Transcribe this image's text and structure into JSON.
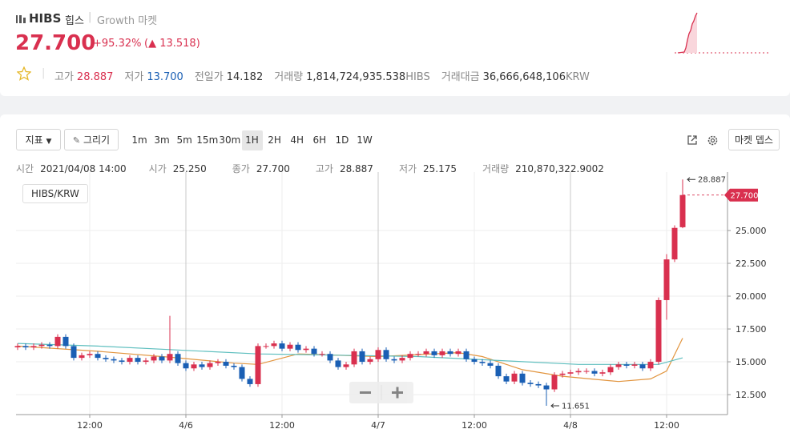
{
  "header": {
    "ticker": "HIBS",
    "name": "힙스",
    "market": "Growth 마켓",
    "price": "27.700",
    "change_rate": "+95.32%",
    "change": "(▲ 13.518)",
    "stats": [
      {
        "label": "고가",
        "value": "28.887"
      },
      {
        "label": "저가",
        "value": "13.700"
      },
      {
        "label": "전일가",
        "value": "14.182"
      },
      {
        "label": "거래량",
        "value": "1,814,724,935.538",
        "unit": "HIBS"
      },
      {
        "label": "거래대금",
        "value": "36,666,648,106",
        "unit": "KRW"
      }
    ]
  },
  "toolbar": {
    "indicator": "지표",
    "draw": "그리기",
    "intervals": [
      "1m",
      "3m",
      "5m",
      "15m",
      "30m",
      "1H",
      "2H",
      "4H",
      "6H",
      "1D",
      "1W"
    ],
    "selected_interval": "1H",
    "depth": "마켓 뎁스"
  },
  "ohlc_bar": [
    {
      "label": "시간",
      "value": "2021/04/08 14:00"
    },
    {
      "label": "시가",
      "value": "25.250"
    },
    {
      "label": "종가",
      "value": "27.700"
    },
    {
      "label": "고가",
      "value": "28.887"
    },
    {
      "label": "저가",
      "value": "25.175"
    },
    {
      "label": "거래량",
      "value": "210,870,322.9002"
    }
  ],
  "chart_data": {
    "type": "candlestick",
    "legend": "HIBS/KRW",
    "up_color": "#d9304f",
    "down_color": "#1a5fb4",
    "open": [
      16.1,
      16.2,
      16.1,
      16.2,
      16.3,
      16.2,
      16.9,
      16.2,
      15.3,
      15.5,
      15.6,
      15.3,
      15.2,
      15.1,
      15.0,
      15.3,
      15.0,
      15.1,
      15.4,
      15.1,
      15.6,
      14.9,
      14.5,
      14.8,
      14.6,
      14.9,
      15.0,
      14.7,
      14.6,
      13.7,
      13.3,
      16.2,
      16.2,
      16.4,
      16.0,
      16.3,
      15.9,
      16.0,
      15.6,
      15.6,
      15.1,
      14.6,
      14.8,
      15.8,
      15.0,
      15.2,
      15.9,
      15.2,
      15.1,
      15.3,
      15.6,
      15.6,
      15.8,
      15.5,
      15.8,
      15.6,
      15.8,
      15.2,
      15.0,
      14.9,
      14.7,
      13.9,
      13.5,
      14.1,
      13.4,
      13.3,
      13.2,
      12.9,
      14.0,
      14.1,
      14.2,
      14.3,
      14.3,
      14.1,
      14.2,
      14.6,
      14.8,
      14.7,
      14.8,
      14.5,
      15.0,
      19.7,
      22.8,
      25.25
    ],
    "high": [
      16.4,
      16.4,
      16.4,
      16.5,
      16.5,
      17.1,
      17.1,
      16.4,
      15.7,
      15.8,
      15.8,
      15.5,
      15.4,
      15.3,
      15.5,
      15.5,
      15.3,
      15.6,
      15.6,
      18.5,
      15.8,
      15.1,
      15.0,
      15.0,
      15.1,
      15.2,
      15.2,
      14.9,
      14.8,
      13.9,
      16.4,
      16.4,
      16.6,
      16.6,
      16.5,
      16.5,
      16.2,
      16.2,
      15.8,
      15.8,
      15.3,
      15.0,
      16.0,
      16.0,
      15.4,
      16.1,
      16.1,
      15.4,
      15.5,
      15.8,
      15.8,
      16.0,
      16.0,
      16.0,
      16.0,
      16.0,
      16.0,
      15.4,
      15.2,
      15.1,
      14.9,
      14.1,
      14.3,
      14.3,
      13.6,
      13.5,
      13.4,
      14.2,
      14.3,
      14.4,
      14.5,
      14.5,
      14.5,
      14.4,
      14.8,
      15.0,
      15.0,
      15.0,
      15.0,
      15.2,
      19.9,
      23.2,
      25.4,
      28.887
    ],
    "low": [
      15.9,
      15.9,
      15.9,
      16.0,
      16.0,
      16.0,
      16.0,
      15.1,
      15.1,
      15.3,
      15.1,
      15.0,
      14.9,
      14.8,
      14.8,
      14.8,
      14.8,
      14.9,
      14.9,
      14.9,
      14.7,
      14.3,
      14.3,
      14.4,
      14.4,
      14.7,
      14.5,
      14.4,
      13.5,
      13.1,
      13.1,
      16.0,
      16.0,
      15.8,
      15.8,
      15.7,
      15.7,
      15.4,
      15.4,
      14.9,
      14.4,
      14.4,
      14.6,
      14.8,
      14.8,
      15.0,
      15.0,
      14.9,
      14.9,
      15.1,
      15.4,
      15.4,
      15.3,
      15.3,
      15.4,
      15.4,
      15.0,
      14.8,
      14.7,
      14.5,
      13.7,
      13.3,
      13.3,
      13.2,
      13.1,
      13.0,
      11.651,
      12.7,
      13.8,
      13.9,
      14.0,
      14.1,
      13.9,
      13.9,
      14.0,
      14.4,
      14.5,
      14.5,
      14.3,
      14.3,
      14.8,
      18.2,
      22.6,
      25.175
    ],
    "close": [
      16.2,
      16.1,
      16.2,
      16.3,
      16.2,
      16.9,
      16.2,
      15.3,
      15.5,
      15.6,
      15.3,
      15.2,
      15.1,
      15.0,
      15.3,
      15.0,
      15.1,
      15.4,
      15.1,
      15.6,
      14.9,
      14.5,
      14.8,
      14.6,
      14.9,
      15.0,
      14.7,
      14.6,
      13.7,
      13.3,
      16.2,
      16.2,
      16.4,
      16.0,
      16.3,
      15.9,
      16.0,
      15.6,
      15.6,
      15.1,
      14.6,
      14.8,
      15.8,
      15.0,
      15.2,
      15.9,
      15.2,
      15.1,
      15.3,
      15.6,
      15.6,
      15.8,
      15.5,
      15.8,
      15.6,
      15.8,
      15.2,
      15.0,
      14.9,
      14.7,
      13.9,
      13.5,
      14.1,
      13.4,
      13.3,
      13.2,
      12.9,
      14.0,
      14.1,
      14.2,
      14.3,
      14.3,
      14.1,
      14.2,
      14.6,
      14.8,
      14.7,
      14.8,
      14.5,
      15.0,
      19.7,
      22.8,
      25.2,
      27.7
    ],
    "ma": [
      {
        "color": "#e2953f",
        "x": [
          0,
          10,
          20,
          27,
          30,
          35,
          45,
          55,
          58,
          63,
          68,
          75,
          79,
          81,
          83
        ],
        "values": [
          16.2,
          15.8,
          15.3,
          14.9,
          14.8,
          15.6,
          15.4,
          15.7,
          15.4,
          14.4,
          13.9,
          13.5,
          13.7,
          14.3,
          16.8
        ]
      },
      {
        "color": "#5fbfbf",
        "x": [
          0,
          10,
          20,
          30,
          40,
          50,
          60,
          70,
          80,
          83
        ],
        "values": [
          16.4,
          16.2,
          15.9,
          15.6,
          15.5,
          15.4,
          15.1,
          14.8,
          14.8,
          15.3
        ]
      }
    ],
    "xlim": [
      -0.2,
      88.6
    ],
    "xticks": [
      {
        "value": 9,
        "label": "12:00"
      },
      {
        "value": 21,
        "label": "4/6"
      },
      {
        "value": 33,
        "label": "12:00"
      },
      {
        "value": 45,
        "label": "4/7"
      },
      {
        "value": 57,
        "label": "12:00"
      },
      {
        "value": 69,
        "label": "4/8"
      },
      {
        "value": 81,
        "label": "12:00"
      }
    ],
    "ylim": [
      10.98,
      29.45
    ],
    "yticks": [
      {
        "value": 12.5,
        "label": "12.500"
      },
      {
        "value": 15,
        "label": "15.000"
      },
      {
        "value": 17.5,
        "label": "17.500"
      },
      {
        "value": 20,
        "label": "20.000"
      },
      {
        "value": 22.5,
        "label": "22.500"
      },
      {
        "value": 25,
        "label": "25.000"
      }
    ],
    "grid": true
  }
}
